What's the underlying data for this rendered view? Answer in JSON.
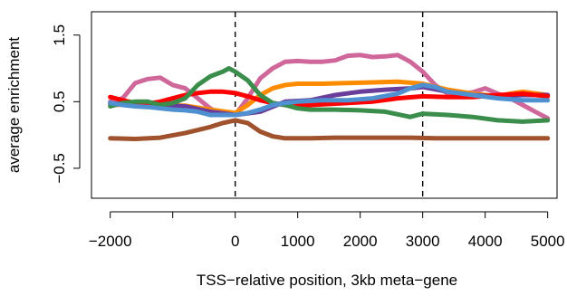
{
  "chart_data": {
    "type": "line",
    "title": "",
    "xlabel": "TSS−relative position, 3kb meta−gene",
    "ylabel": "average enrichment",
    "xlim": [
      -2300,
      5150
    ],
    "ylim": [
      -0.95,
      1.85
    ],
    "xticks": [
      -2000,
      -1000,
      0,
      1000,
      2000,
      3000,
      4000,
      5000
    ],
    "xtick_labels": [
      "−2000",
      "",
      "0",
      "1000",
      "2000",
      "3000",
      "4000",
      "5000"
    ],
    "yticks": [
      -0.5,
      0.5,
      1.5
    ],
    "ytick_labels": [
      "−0.5",
      "0.5",
      "1.5"
    ],
    "vlines": [
      0,
      3000
    ],
    "grid": false,
    "legend": "none",
    "series": [
      {
        "color": "#d0679a",
        "x": [
          -2000,
          -1800,
          -1600,
          -1400,
          -1200,
          -1000,
          -800,
          -600,
          -400,
          -200,
          0,
          200,
          400,
          600,
          800,
          1000,
          1200,
          1400,
          1600,
          1800,
          2000,
          2200,
          2400,
          2600,
          2800,
          3000,
          3200,
          3400,
          3600,
          3800,
          4000,
          4200,
          4400,
          4600,
          4800,
          5000
        ],
        "y": [
          0.5,
          0.55,
          0.78,
          0.84,
          0.86,
          0.75,
          0.7,
          0.55,
          0.4,
          0.3,
          0.3,
          0.55,
          0.85,
          1.0,
          1.1,
          1.11,
          1.1,
          1.1,
          1.12,
          1.19,
          1.2,
          1.17,
          1.18,
          1.2,
          1.1,
          0.95,
          0.75,
          0.62,
          0.62,
          0.64,
          0.7,
          0.62,
          0.55,
          0.45,
          0.35,
          0.25
        ]
      },
      {
        "color": "#ff8c00",
        "x": [
          -2000,
          -1600,
          -1200,
          -800,
          -400,
          0,
          200,
          400,
          600,
          800,
          1000,
          1400,
          1800,
          2200,
          2600,
          3000,
          3400,
          3800,
          4200,
          4400,
          4600,
          5000
        ],
        "y": [
          0.45,
          0.46,
          0.45,
          0.44,
          0.38,
          0.33,
          0.45,
          0.6,
          0.7,
          0.75,
          0.77,
          0.77,
          0.78,
          0.79,
          0.8,
          0.77,
          0.68,
          0.62,
          0.58,
          0.62,
          0.65,
          0.6
        ]
      },
      {
        "color": "#6a3d9a",
        "x": [
          -2000,
          -1600,
          -1200,
          -800,
          -400,
          0,
          400,
          800,
          1200,
          1600,
          2000,
          2400,
          2800,
          3000,
          3400,
          3800,
          4200,
          4600,
          5000
        ],
        "y": [
          0.47,
          0.46,
          0.45,
          0.43,
          0.35,
          0.3,
          0.35,
          0.5,
          0.52,
          0.6,
          0.65,
          0.68,
          0.7,
          0.72,
          0.65,
          0.6,
          0.58,
          0.6,
          0.6
        ]
      },
      {
        "color": "#ff0000",
        "x": [
          -2000,
          -1800,
          -1600,
          -1400,
          -1200,
          -1000,
          -800,
          -600,
          -400,
          -200,
          0,
          200,
          400,
          600,
          800,
          1000,
          1400,
          1800,
          2200,
          2600,
          3000,
          3400,
          3800,
          4200,
          4600,
          5000
        ],
        "y": [
          0.57,
          0.52,
          0.48,
          0.47,
          0.5,
          0.55,
          0.6,
          0.63,
          0.65,
          0.65,
          0.63,
          0.58,
          0.52,
          0.48,
          0.45,
          0.44,
          0.46,
          0.48,
          0.5,
          0.55,
          0.58,
          0.57,
          0.57,
          0.6,
          0.62,
          0.58
        ]
      },
      {
        "color": "#3a8d4a",
        "x": [
          -2000,
          -1800,
          -1600,
          -1400,
          -1200,
          -1000,
          -800,
          -600,
          -400,
          -200,
          -100,
          0,
          200,
          400,
          600,
          800,
          1000,
          1200,
          1600,
          2000,
          2400,
          2800,
          3000,
          3400,
          3800,
          4200,
          4600,
          5000
        ],
        "y": [
          0.43,
          0.48,
          0.5,
          0.5,
          0.45,
          0.48,
          0.55,
          0.75,
          0.88,
          0.95,
          1.0,
          0.95,
          0.82,
          0.6,
          0.48,
          0.45,
          0.4,
          0.38,
          0.38,
          0.37,
          0.35,
          0.27,
          0.32,
          0.3,
          0.27,
          0.22,
          0.2,
          0.22
        ]
      },
      {
        "color": "#4f91d0",
        "x": [
          -2000,
          -1800,
          -1600,
          -1400,
          -1200,
          -1000,
          -800,
          -600,
          -400,
          -200,
          0,
          200,
          400,
          600,
          800,
          1000,
          1400,
          1800,
          2200,
          2600,
          2800,
          3000,
          3200,
          3400,
          3800,
          4200,
          4600,
          5000
        ],
        "y": [
          0.48,
          0.45,
          0.43,
          0.42,
          0.4,
          0.38,
          0.37,
          0.35,
          0.3,
          0.3,
          0.3,
          0.33,
          0.38,
          0.45,
          0.48,
          0.5,
          0.52,
          0.52,
          0.55,
          0.62,
          0.7,
          0.75,
          0.72,
          0.65,
          0.6,
          0.55,
          0.52,
          0.52
        ]
      },
      {
        "color": "#a0522d",
        "x": [
          -2000,
          -1600,
          -1200,
          -800,
          -400,
          -200,
          0,
          200,
          400,
          600,
          800,
          1200,
          1600,
          2000,
          2400,
          2800,
          3200,
          3600,
          4000,
          4400,
          4800,
          5000
        ],
        "y": [
          -0.05,
          -0.06,
          -0.04,
          0.03,
          0.12,
          0.18,
          0.22,
          0.18,
          0.05,
          -0.02,
          -0.05,
          -0.05,
          -0.04,
          -0.04,
          -0.04,
          -0.04,
          -0.05,
          -0.05,
          -0.05,
          -0.05,
          -0.05,
          -0.05
        ]
      }
    ]
  }
}
